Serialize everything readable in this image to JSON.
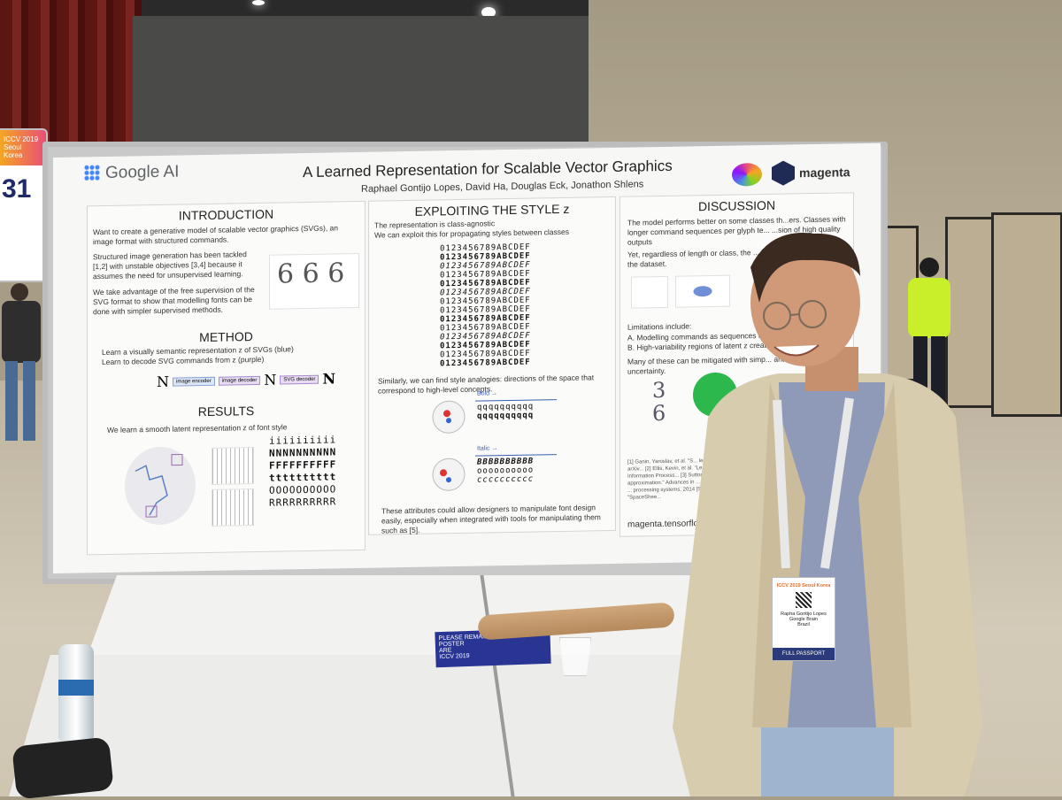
{
  "poster": {
    "brand_left": "Google AI",
    "title": "A Learned Representation for Scalable Vector Graphics",
    "authors": "Raphael Gontijo Lopes, David Ha, Douglas Eck, Jonathon Shlens",
    "brand_right": "magenta",
    "intro": {
      "heading": "INTRODUCTION",
      "p1": "Want to create a generative model of scalable vector graphics (SVGs), an image format with structured commands.",
      "p2": "Structured image generation has been tackled [1,2] with unstable objectives [3,4] because it assumes the need for unsupervised learning.",
      "p3": "We take advantage of the free supervision of the SVG format to show that modelling fonts can be done with simpler supervised methods."
    },
    "method": {
      "heading": "METHOD",
      "b1": "Learn a visually semantic representation z of SVGs (blue)",
      "b2": "Learn to decode SVG commands from z (purple)",
      "diagram": [
        "N",
        "image encoder",
        "image decoder",
        "N",
        "SVG decoder",
        "N"
      ]
    },
    "results": {
      "heading": "RESULTS",
      "p1": "We learn a smooth latent representation z of font style",
      "rows": [
        "iiiiiiiiii",
        "NNNNNNNNNN",
        "FFFFFFFFFF",
        "tttttttttt",
        "OOOOOOOOOO",
        "RRRRRRRRRR"
      ]
    },
    "style": {
      "heading": "EXPLOITING THE STYLE z",
      "p1": "The representation is class-agnostic",
      "p2": "We can exploit this for propagating styles between classes",
      "grid": [
        "0123456789ABCDEF",
        "0123456789ABCDEF",
        "0123456789ABCDEF",
        "0123456789ABCDEF",
        "0123456789ABCDEF",
        "0123456789ABCDEF",
        "0123456789ABCDEF",
        "0123456789ABCDEF",
        "0123456789ABCDEF",
        "0123456789ABCDEF",
        "0123456789ABCDEF",
        "0123456789ABCDEF",
        "0123456789ABCDEF",
        "0123456789ABCDEF"
      ],
      "p3": "Similarly, we can find style analogies: directions of the space that correspond to high-level concepts.",
      "bold_label": "Bold →",
      "italic_label": "Italic →",
      "row_a": "qqqqqqqqqq",
      "row_b": "qqqqqqqqqq",
      "row_c": "BBBBBBBBBB",
      "row_d": "oooooooooo",
      "row_e": "cccccccccc",
      "p4": "These attributes could allow designers to manipulate font design easily, especially when integrated with tools for manipulating them such as [5]."
    },
    "discussion": {
      "heading": "DISCUSSION",
      "p1": "The model performs better on some classes th...ers. Classes with longer command sequences per glyph te... ...sion of high quality outputs",
      "p2": "Yet, regardless of length or class, the ... high variability of styles in the dataset.",
      "p3": "Limitations include:",
      "a": "A.  Modelling commands as sequences ca...",
      "b": "B.  High-variability regions of latent z create...",
      "p4": "Many of these can be mitigated with simp... analysing model uncertainty.",
      "refs": "[1] Ganin, Yaroslav, et al. \"S... learning.\" arXiv preprint arXiv... [2] Ellis, Kevin, et al. \"Learnin... in Neural Information Process... [3] Sutton, Richard S., et al. ... approximation.\" Advances in ... [4] Goodfellow, Ian, et al ... processing systems. 2014 [5] Loh, Bryan. \"SpaceShee...",
      "url": "magenta.tensorflo..."
    }
  },
  "side_sign": {
    "header": "ICCV 2019 Seoul Korea",
    "number": "31"
  },
  "badge": {
    "header": "ICCV 2019 Seoul Korea",
    "name": "Rapha Gontijo Lopes",
    "org": "Google Brain",
    "country": "Brazil",
    "type": "FULL PASSPORT"
  },
  "flyer": {
    "lines": [
      "PLEASE REMAIN FROM",
      "POSTER",
      "ARE"
    ],
    "event": "ICCV 2019"
  },
  "colors": {
    "accent_blue": "#4a6fd1",
    "poster_bg": "#f7f7f5",
    "jacket": "#d8ccaf"
  }
}
